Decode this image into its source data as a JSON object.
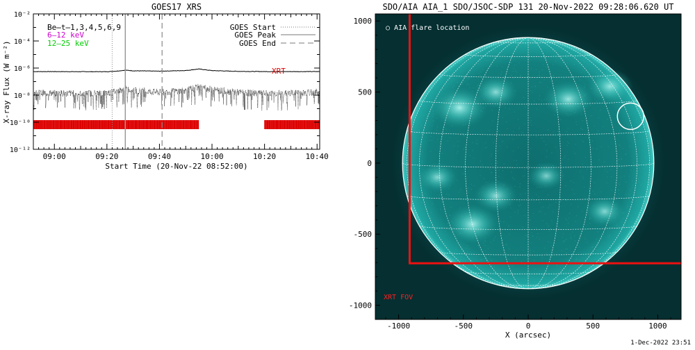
{
  "footer_stamp": "1-Dec-2022 23:51",
  "chart_data": [
    {
      "type": "line",
      "title": "GOES17 XRS",
      "xlabel": "Start Time (20-Nov-22 08:52:00)",
      "ylabel": "X-ray Flux (W m⁻²)",
      "xlim": [
        "08:52",
        "10:41"
      ],
      "ylim": [
        1e-12,
        0.01
      ],
      "yscale": "log",
      "x_ticks": [
        "09:00",
        "09:20",
        "09:40",
        "10:00",
        "10:20",
        "10:40"
      ],
      "y_ticks": [
        "10⁻¹²",
        "10⁻¹⁰",
        "10⁻⁸",
        "10⁻⁶",
        "10⁻⁴",
        "10⁻²"
      ],
      "legend_left": [
        {
          "label": "Be̶t̶1,3,4,5,6,9",
          "color": "#000000"
        },
        {
          "label": "6–12 keV",
          "color": "#cc00cc"
        },
        {
          "label": "12–25 keV",
          "color": "#00cc00"
        }
      ],
      "legend_right": [
        {
          "label": "GOES Start",
          "style": "dotted"
        },
        {
          "label": "GOES Peak",
          "style": "solid"
        },
        {
          "label": "GOES End",
          "style": "dashed"
        }
      ],
      "markers": {
        "goes_start": "09:22",
        "goes_peak": "09:27",
        "goes_end": "09:41"
      },
      "series": [
        {
          "name": "",
          "color": "#000000",
          "x": [
            "08:52",
            "09:00",
            "09:10",
            "09:20",
            "09:24",
            "09:27",
            "09:30",
            "09:40",
            "09:50",
            "09:55",
            "10:00",
            "10:10",
            "10:20",
            "10:30",
            "10:41"
          ],
          "values": [
            5.5e-07,
            5.5e-07,
            5.4e-07,
            5.4e-07,
            6e-07,
            7e-07,
            6.3e-07,
            5.9e-07,
            6.6e-07,
            8.5e-07,
            6.5e-07,
            5.7e-07,
            5.5e-07,
            5.5e-07,
            5.5e-07
          ]
        },
        {
          "name": "",
          "color": "#000000",
          "x": [
            "08:52",
            "09:00",
            "09:10",
            "09:20",
            "09:24",
            "09:27",
            "09:30",
            "09:40",
            "09:50",
            "09:55",
            "10:00",
            "10:10",
            "10:20",
            "10:30",
            "10:41"
          ],
          "values": [
            1.5e-08,
            1.4e-08,
            1.3e-08,
            1.4e-08,
            2e-08,
            3e-08,
            2.2e-08,
            1.6e-08,
            2.2e-08,
            4e-08,
            2.6e-08,
            1.6e-08,
            1.3e-08,
            1.4e-08,
            1.6e-08
          ]
        }
      ],
      "xrt_label": "XRT",
      "xrt_coverage": [
        [
          "08:52",
          "09:55"
        ],
        [
          "10:20",
          "10:41"
        ]
      ],
      "xrt_color": "#dd0000"
    },
    {
      "type": "image",
      "title": "SDO/AIA AIA_1 SDO/JSOC-SDP 131 20-Nov-2022 09:28:06.620 UT",
      "xlabel": "X (arcsec)",
      "ylabel": "",
      "xlim": [
        -1180,
        1180
      ],
      "ylim": [
        -1100,
        1050
      ],
      "x_ticks": [
        -1000,
        -500,
        0,
        500,
        1000
      ],
      "y_ticks": [
        -1000,
        -500,
        0,
        500,
        1000
      ],
      "disk_radius": 970,
      "flare_location": {
        "label": "AIA flare location",
        "x": 790,
        "y": 330
      },
      "xrt_fov": {
        "label": "XRT FOV",
        "x_min": -915,
        "y_max": -705
      },
      "active_regions": [
        {
          "x": -530,
          "y": 390,
          "strength": 1.0
        },
        {
          "x": 310,
          "y": 450,
          "strength": 0.8
        },
        {
          "x": -250,
          "y": 500,
          "strength": 0.6
        },
        {
          "x": 630,
          "y": 540,
          "strength": 0.7
        },
        {
          "x": -430,
          "y": -430,
          "strength": 0.9
        },
        {
          "x": -250,
          "y": -230,
          "strength": 0.6
        },
        {
          "x": -700,
          "y": -100,
          "strength": 0.5
        },
        {
          "x": 590,
          "y": -340,
          "strength": 0.5
        },
        {
          "x": 140,
          "y": -90,
          "strength": 0.4
        }
      ],
      "colors": {
        "disk": "#0f8a88",
        "disk_edge": "#31bdb6",
        "sky": "#052f31",
        "frame": "#ffffff"
      }
    }
  ]
}
